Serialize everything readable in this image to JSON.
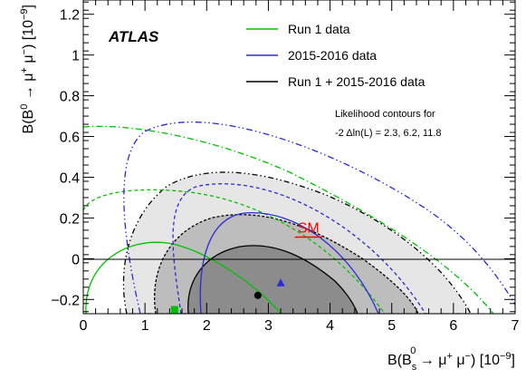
{
  "chart_data": {
    "type": "contour",
    "experiment_label": "ATLAS",
    "xlabel_parts": {
      "prefix": "B(",
      "base": "B",
      "sub": "s",
      "sup": "0",
      "arrow": " → ",
      "mu1": "μ",
      "mu1_sup": "+",
      "mu2": " μ",
      "mu2_sup": "−",
      "suffix": ") [10",
      "exp": "−9",
      "close": "]"
    },
    "ylabel_parts": {
      "prefix": "B(",
      "base": "B",
      "sup": "0",
      "arrow": " → ",
      "mu1": "μ",
      "mu1_sup": "+",
      "mu2": " μ",
      "mu2_sup": "−",
      "suffix": ") [10",
      "exp": "−9",
      "close": "]"
    },
    "xlim": [
      0,
      7
    ],
    "ylim": [
      -0.27,
      1.27
    ],
    "x_ticks": [
      0,
      1,
      2,
      3,
      4,
      5,
      6,
      7
    ],
    "x_tick_labels": [
      "0",
      "1",
      "2",
      "3",
      "4",
      "5",
      "6",
      "7"
    ],
    "y_ticks": [
      -0.2,
      0,
      0.2,
      0.4,
      0.6,
      0.8,
      1,
      1.2
    ],
    "y_tick_labels": [
      "−0.2",
      "0",
      "0.2",
      "0.4",
      "0.6",
      "0.8",
      "1",
      "1.2"
    ],
    "legend": [
      {
        "label": "Run 1  data",
        "color": "#00c000"
      },
      {
        "label": "2015-2016  data",
        "color": "#2a2ad8"
      },
      {
        "label": "Run 1 + 2015-2016 data",
        "color": "#000000"
      }
    ],
    "annotation": {
      "line1": "Likelihood contours for",
      "line2": "-2 Δln(L) = 2.3, 6.2, 11.8"
    },
    "sm_point": {
      "label": "SM",
      "x": 3.65,
      "y": 0.106,
      "color": "#ff0000"
    },
    "best_fit_points": [
      {
        "series": "Run 1  data",
        "x": 1.48,
        "y": -0.25,
        "marker": "square",
        "color": "#00c000"
      },
      {
        "series": "2015-2016  data",
        "x": 3.2,
        "y": -0.12,
        "marker": "triangle",
        "color": "#2a2ad8"
      },
      {
        "series": "Run 1 + 2015-2016 data",
        "x": 2.83,
        "y": -0.18,
        "marker": "circle",
        "color": "#000000"
      }
    ],
    "contour_levels": [
      2.3,
      6.2,
      11.8
    ],
    "fill_colors": [
      "#8c8c8c",
      "#bdbdbd",
      "#e6e6e6"
    ]
  }
}
